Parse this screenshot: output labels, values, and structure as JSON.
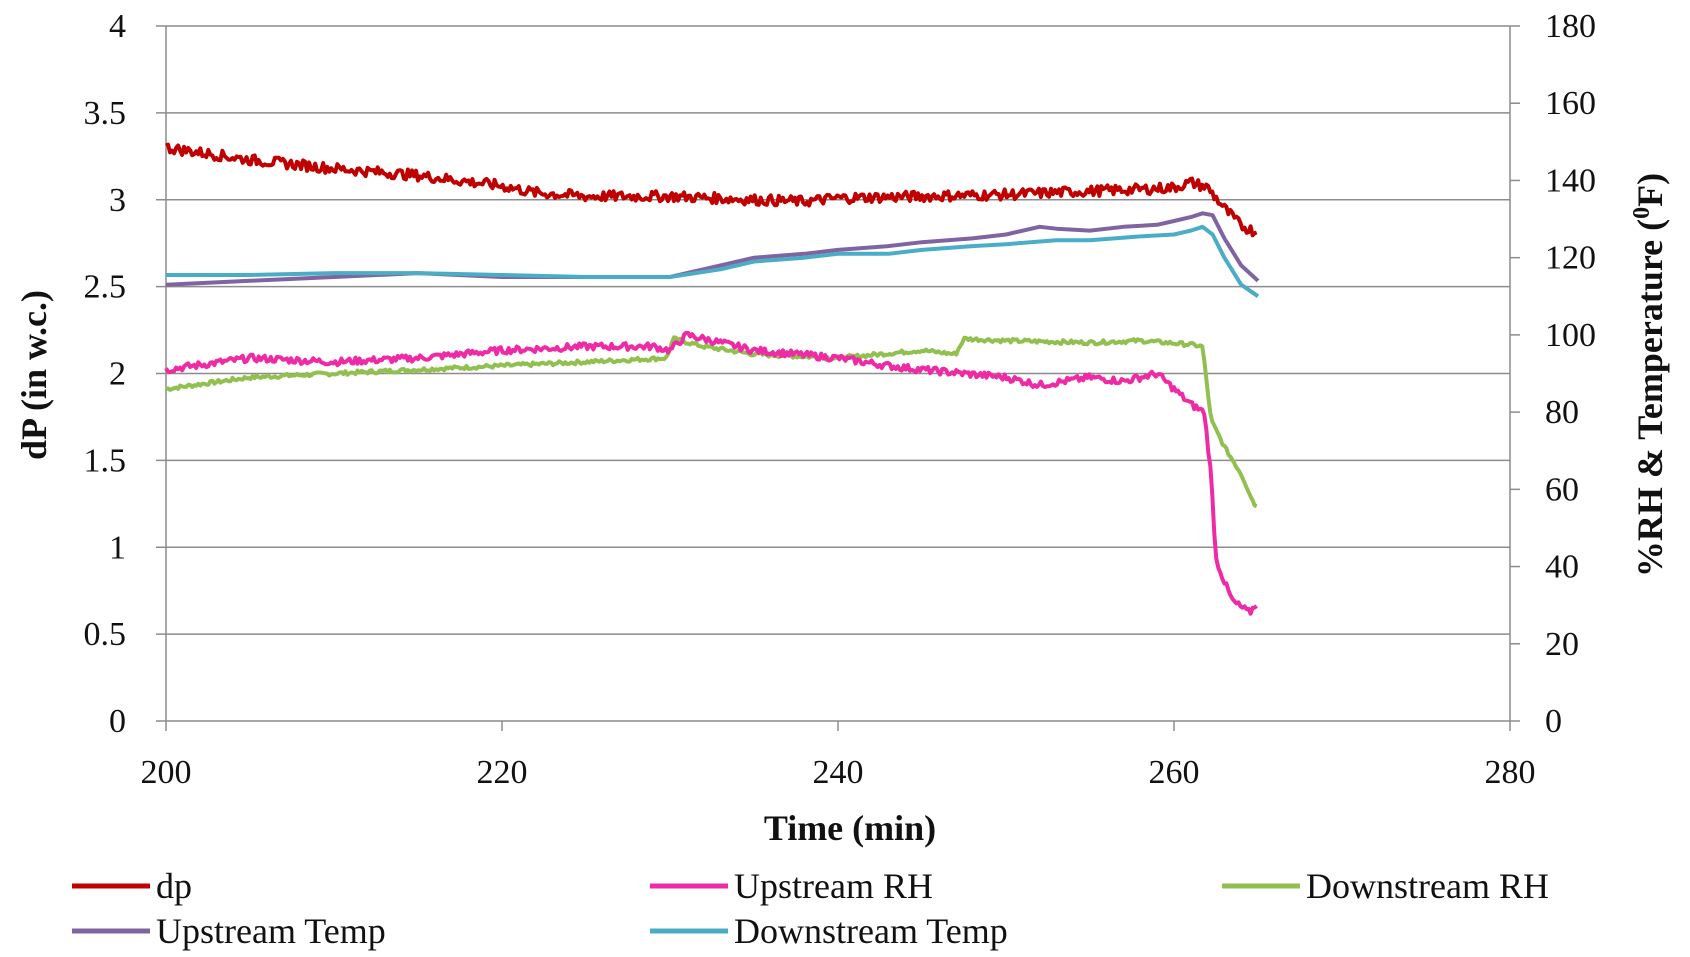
{
  "chart_data": {
    "type": "line",
    "title": "",
    "xlabel": "Time (min)",
    "ylabel_left": "dP (in w.c.)",
    "ylabel_right": "%RH & Temperature (",
    "ylabel_right_sup": "0",
    "ylabel_right_end": "F)",
    "xlim": [
      200,
      280
    ],
    "ylim_left": [
      0,
      4
    ],
    "ylim_right": [
      0,
      180
    ],
    "x_ticks": [
      "200",
      "220",
      "240",
      "260",
      "280"
    ],
    "y_left_ticks": [
      "0",
      "0.5",
      "1",
      "1.5",
      "2",
      "2.5",
      "3",
      "3.5",
      "4"
    ],
    "y_right_ticks": [
      "0",
      "20",
      "40",
      "60",
      "80",
      "100",
      "120",
      "140",
      "160",
      "180"
    ],
    "grid": true,
    "legend_position": "bottom",
    "series": [
      {
        "name": "dp",
        "axis": "left",
        "color": "#c00000",
        "noise": 0.03,
        "x": [
          200,
          205,
          210,
          215,
          220,
          222,
          225,
          230,
          235,
          238,
          240,
          245,
          250,
          255,
          258,
          260,
          261,
          262,
          263,
          264,
          265
        ],
        "y": [
          3.3,
          3.23,
          3.18,
          3.14,
          3.08,
          3.04,
          3.02,
          3.02,
          3.0,
          2.99,
          3.01,
          3.02,
          3.03,
          3.05,
          3.06,
          3.07,
          3.1,
          3.07,
          2.95,
          2.85,
          2.81
        ]
      },
      {
        "name": "Upstream RH",
        "axis": "right",
        "color": "#ee2aa5",
        "noise": 0.9,
        "x": [
          200,
          205,
          210,
          215,
          220,
          225,
          229,
          230,
          231,
          233,
          235,
          240,
          243,
          245,
          250,
          252,
          255,
          257,
          258,
          259,
          261,
          261.8,
          262.2,
          262.5,
          263,
          263.5,
          264.5,
          265
        ],
        "y": [
          91,
          94,
          93,
          94,
          96,
          97,
          97,
          96,
          100,
          98,
          96,
          94,
          92,
          91,
          89,
          87,
          89,
          88,
          89,
          90,
          82,
          80,
          64,
          42,
          36,
          31,
          28,
          31
        ]
      },
      {
        "name": "Downstream RH",
        "axis": "right",
        "color": "#92c050",
        "noise": 0.5,
        "x": [
          200,
          205,
          210,
          215,
          220,
          225,
          229.8,
          230.2,
          232,
          235,
          240,
          245,
          247,
          247.5,
          250,
          255,
          258,
          261,
          261.7,
          262.2,
          263,
          264,
          264.8,
          265
        ],
        "y": [
          86,
          89,
          90,
          91,
          92,
          93,
          94,
          99,
          97,
          95,
          94,
          96,
          95,
          99,
          98.5,
          98,
          98.5,
          97.5,
          97,
          78,
          71,
          64,
          56,
          56
        ]
      },
      {
        "name": "Upstream Temp",
        "axis": "right",
        "color": "#8064a2",
        "noise": 0,
        "x": [
          200,
          205,
          210,
          215,
          220,
          225,
          230,
          233,
          235,
          238,
          240,
          243,
          245,
          248,
          250,
          252,
          253,
          255,
          257,
          259,
          260,
          261,
          261.7,
          262.3,
          263,
          264,
          265
        ],
        "y": [
          113,
          114,
          115,
          116,
          115,
          115,
          115,
          118,
          120,
          121,
          122,
          123,
          124,
          125,
          126,
          128,
          127.5,
          127,
          128,
          128.5,
          129.5,
          130.5,
          131.5,
          131,
          125,
          118,
          114
        ]
      },
      {
        "name": "Downstream Temp",
        "axis": "right",
        "color": "#4bacc6",
        "noise": 0,
        "x": [
          200,
          205,
          210,
          215,
          220,
          225,
          230,
          233,
          235,
          238,
          240,
          243,
          245,
          248,
          250,
          253,
          255,
          258,
          260,
          261,
          261.7,
          262.3,
          263,
          264,
          265
        ],
        "y": [
          115.5,
          115.5,
          116,
          116,
          115.5,
          115,
          115,
          117,
          119,
          120,
          121,
          121,
          122,
          123,
          123.5,
          124.5,
          124.5,
          125.5,
          126,
          127,
          128,
          126,
          120,
          113,
          110
        ]
      }
    ]
  }
}
